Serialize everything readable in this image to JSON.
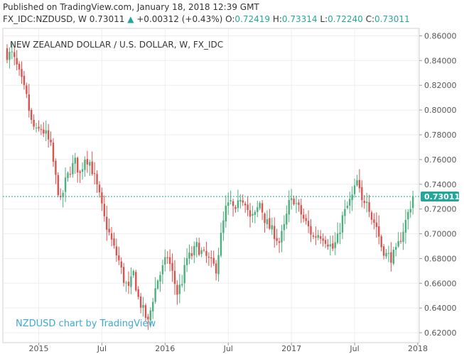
{
  "header": {
    "published": "Published on TradingView.com, January 18, 2018 12:39 GMT",
    "symbol": "FX_IDC:NZDUSD, W",
    "last": "0.73011",
    "change_arrow": "▲",
    "change": "+0.00312 (+0.43%)",
    "o_label": "O:",
    "o_value": "0.72419",
    "h_label": "H:",
    "h_value": "0.73314",
    "l_label": "L:",
    "l_value": "0.72240",
    "c_label": "C:",
    "c_value": "0.73011"
  },
  "chart_data": {
    "type": "candlestick",
    "title": "NEW ZEALAND DOLLAR / U.S. DOLLAR, W, FX_IDC",
    "watermark": "NZDUSD chart by TradingView",
    "last_price_label": "0.73011",
    "last_price": 0.73011,
    "ylim": [
      0.612,
      0.866
    ],
    "y_ticks": [
      "0.86000",
      "0.84000",
      "0.82000",
      "0.80000",
      "0.78000",
      "0.76000",
      "0.74000",
      "0.72000",
      "0.70000",
      "0.68000",
      "0.66000",
      "0.64000",
      "0.62000"
    ],
    "y_tick_values": [
      0.86,
      0.84,
      0.82,
      0.8,
      0.78,
      0.76,
      0.74,
      0.72,
      0.7,
      0.68,
      0.66,
      0.64,
      0.62
    ],
    "x_ticks": [
      "2015",
      "Jul",
      "2016",
      "Jul",
      "2017",
      "Jul",
      "2018"
    ],
    "x_tick_weeks": [
      13,
      39,
      65,
      91,
      117,
      143,
      169
    ],
    "grid": true,
    "up_color": "#4caf7d",
    "down_color": "#d9534f",
    "price_line_color": "#26a69a",
    "close_path": [
      [
        0,
        0.845
      ],
      [
        2,
        0.845
      ],
      [
        4,
        0.835
      ],
      [
        6,
        0.823
      ],
      [
        8,
        0.81
      ],
      [
        10,
        0.79
      ],
      [
        12,
        0.782
      ],
      [
        14,
        0.785
      ],
      [
        16,
        0.78
      ],
      [
        18,
        0.77
      ],
      [
        20,
        0.745
      ],
      [
        22,
        0.725
      ],
      [
        24,
        0.742
      ],
      [
        26,
        0.752
      ],
      [
        28,
        0.758
      ],
      [
        30,
        0.748
      ],
      [
        32,
        0.762
      ],
      [
        34,
        0.758
      ],
      [
        36,
        0.745
      ],
      [
        38,
        0.73
      ],
      [
        40,
        0.712
      ],
      [
        42,
        0.7
      ],
      [
        44,
        0.688
      ],
      [
        46,
        0.678
      ],
      [
        48,
        0.663
      ],
      [
        50,
        0.655
      ],
      [
        52,
        0.668
      ],
      [
        54,
        0.648
      ],
      [
        56,
        0.638
      ],
      [
        58,
        0.628
      ],
      [
        60,
        0.648
      ],
      [
        62,
        0.663
      ],
      [
        64,
        0.672
      ],
      [
        66,
        0.682
      ],
      [
        68,
        0.668
      ],
      [
        70,
        0.652
      ],
      [
        72,
        0.662
      ],
      [
        74,
        0.68
      ],
      [
        76,
        0.683
      ],
      [
        78,
        0.69
      ],
      [
        80,
        0.685
      ],
      [
        82,
        0.681
      ],
      [
        84,
        0.676
      ],
      [
        86,
        0.672
      ],
      [
        88,
        0.698
      ],
      [
        90,
        0.72
      ],
      [
        92,
        0.725
      ],
      [
        94,
        0.716
      ],
      [
        96,
        0.73
      ],
      [
        98,
        0.727
      ],
      [
        100,
        0.712
      ],
      [
        102,
        0.715
      ],
      [
        104,
        0.725
      ],
      [
        106,
        0.712
      ],
      [
        108,
        0.705
      ],
      [
        110,
        0.7
      ],
      [
        112,
        0.693
      ],
      [
        114,
        0.705
      ],
      [
        116,
        0.724
      ],
      [
        118,
        0.728
      ],
      [
        120,
        0.72
      ],
      [
        122,
        0.712
      ],
      [
        124,
        0.705
      ],
      [
        126,
        0.697
      ],
      [
        128,
        0.7
      ],
      [
        130,
        0.698
      ],
      [
        132,
        0.693
      ],
      [
        134,
        0.688
      ],
      [
        136,
        0.696
      ],
      [
        138,
        0.713
      ],
      [
        140,
        0.722
      ],
      [
        142,
        0.73
      ],
      [
        144,
        0.742
      ],
      [
        146,
        0.725
      ],
      [
        148,
        0.73
      ],
      [
        150,
        0.713
      ],
      [
        152,
        0.706
      ],
      [
        154,
        0.69
      ],
      [
        156,
        0.683
      ],
      [
        158,
        0.681
      ],
      [
        160,
        0.685
      ],
      [
        162,
        0.697
      ],
      [
        164,
        0.71
      ],
      [
        166,
        0.723
      ],
      [
        167,
        0.73
      ]
    ]
  }
}
